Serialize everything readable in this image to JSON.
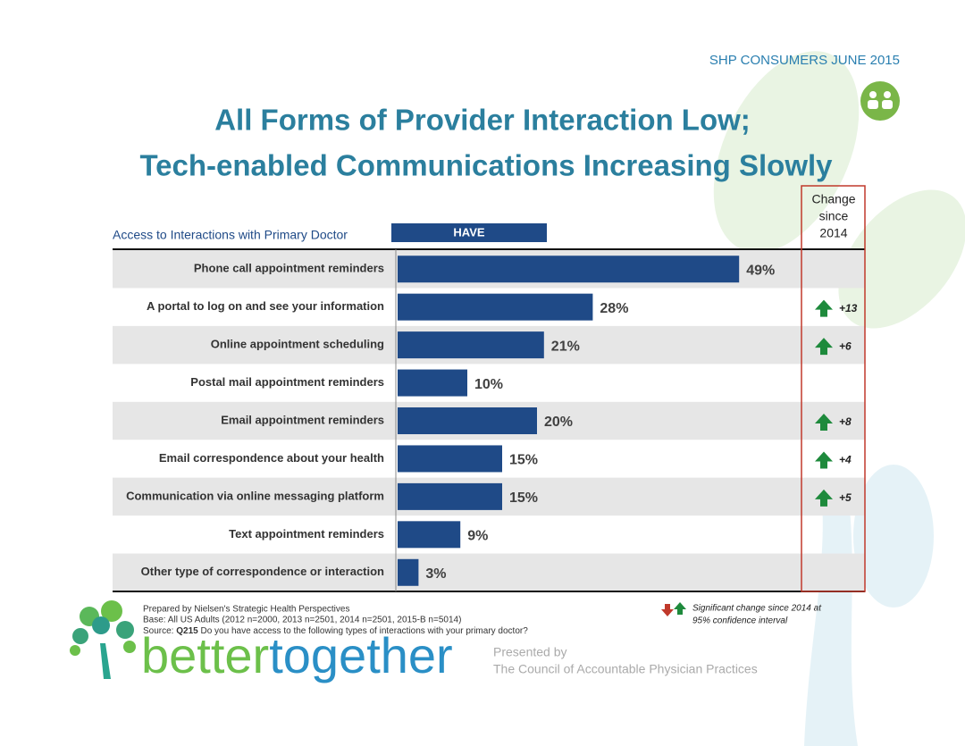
{
  "header": "SHP CONSUMERS JUNE 2015",
  "chart_data": {
    "type": "bar",
    "orientation": "horizontal",
    "title": [
      "All Forms of Provider Interaction Low;",
      "Tech-enabled Communications Increasing Slowly"
    ],
    "y_label": "Access to Interactions with Primary Doctor",
    "categories": [
      "Phone call appointment reminders",
      "A portal to log on and see your information",
      "Online appointment scheduling",
      "Postal mail appointment reminders",
      "Email appointment reminders",
      "Email correspondence about your health",
      "Communication via  online  messaging platform",
      "Text appointment reminders",
      "Other type of correspondence or interaction"
    ],
    "series": [
      {
        "name": "HAVE",
        "color": "#1f4a87",
        "values": [
          49,
          28,
          21,
          10,
          20,
          15,
          15,
          9,
          3
        ],
        "value_labels": [
          "49%",
          "28%",
          "21%",
          "10%",
          "20%",
          "15%",
          "15%",
          "9%",
          "3%"
        ]
      }
    ],
    "change": {
      "title": [
        "Change",
        "since",
        "2014"
      ],
      "color": "#1e8a3c",
      "values": [
        null,
        13,
        6,
        null,
        8,
        4,
        5,
        null,
        null
      ],
      "value_labels": [
        null,
        "+13",
        "+6",
        null,
        "+8",
        "+4",
        "+5",
        null,
        null
      ]
    },
    "legend_note": [
      "Significant change since 2014 at",
      "95% confidence interval"
    ]
  },
  "footer": {
    "prepared": "Prepared by Nielsen's Strategic Health Perspectives",
    "base": "Base: All US Adults (2012 n=2000, 2013 n=2501, 2014 n=2501, 2015-B n=5014)",
    "source": [
      "Source:",
      "Q215",
      "Do you have access to the following types of interactions with your primary doctor?"
    ],
    "logo": [
      "better",
      "together"
    ],
    "presented_by": "Presented by",
    "presenter": "The Council of Accountable Physician Practices"
  }
}
